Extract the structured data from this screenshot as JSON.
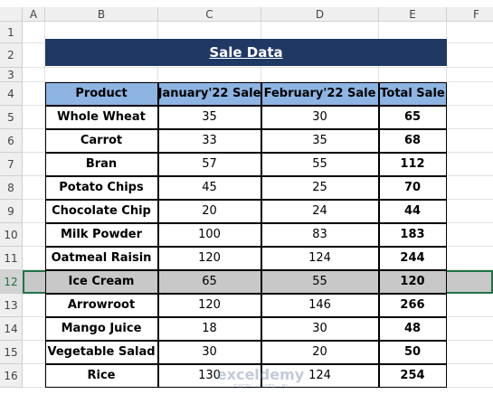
{
  "columns": [
    "A",
    "B",
    "C",
    "D",
    "E",
    "F"
  ],
  "row_numbers": [
    1,
    2,
    3,
    4,
    5,
    6,
    7,
    8,
    9,
    10,
    11,
    12,
    13,
    14,
    15,
    16
  ],
  "title": "Sale Data",
  "table": {
    "header": [
      "Product",
      "January'22 Sale",
      "February'22 Sale",
      "Total Sale"
    ],
    "rows": [
      [
        "Whole Wheat",
        35,
        30,
        65
      ],
      [
        "Carrot",
        33,
        35,
        68
      ],
      [
        "Bran",
        57,
        55,
        112
      ],
      [
        "Potato Chips",
        45,
        25,
        70
      ],
      [
        "Chocolate Chip",
        20,
        24,
        44
      ],
      [
        "Milk Powder",
        100,
        83,
        183
      ],
      [
        "Oatmeal Raisin",
        120,
        124,
        244
      ],
      [
        "Ice Cream",
        65,
        55,
        120
      ],
      [
        "Arrowroot",
        120,
        146,
        266
      ],
      [
        "Mango Juice",
        18,
        30,
        48
      ],
      [
        "Vegetable Salad",
        30,
        20,
        50
      ],
      [
        "Rice",
        130,
        124,
        254
      ]
    ]
  },
  "watermark": {
    "brand": "exceldemy",
    "tagline": "EXCEL · DATA · BI"
  }
}
